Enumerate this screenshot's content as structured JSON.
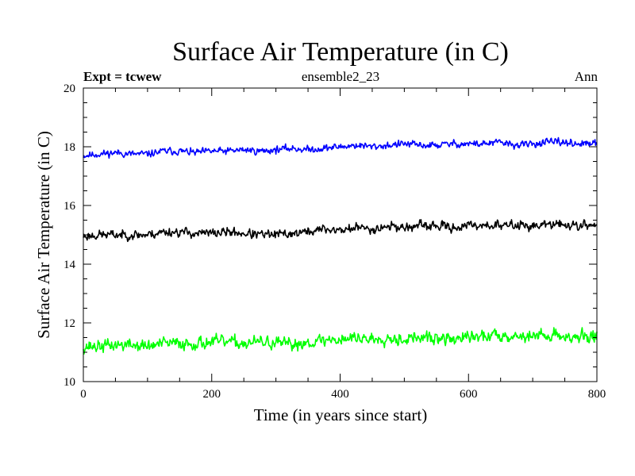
{
  "chart_data": {
    "type": "line",
    "title": "Surface Air Temperature (in C)",
    "subtitle_left": "Expt = tcwew",
    "subtitle_center": "ensemble2_23",
    "subtitle_right": "Ann",
    "xlabel": "Time (in years since start)",
    "ylabel": "Surface Air Temperature (in C)",
    "xlim": [
      0,
      800
    ],
    "ylim": [
      10,
      20
    ],
    "x_ticks": [
      0,
      200,
      400,
      600,
      800
    ],
    "y_ticks": [
      10,
      12,
      14,
      16,
      18,
      20
    ],
    "x_minor_step": 50,
    "y_minor_step": 0.5,
    "grid": false,
    "series": [
      {
        "name": "upper",
        "color": "#0000ff",
        "x_start": 0,
        "x_step": 25,
        "values": [
          17.7,
          17.75,
          17.8,
          17.75,
          17.75,
          17.85,
          17.85,
          17.8,
          17.85,
          17.85,
          17.9,
          17.85,
          17.9,
          17.95,
          17.9,
          17.95,
          18.0,
          18.05,
          18.0,
          18.05,
          18.1,
          18.05,
          18.05,
          18.1,
          18.1,
          18.1,
          18.15,
          18.05,
          18.1,
          18.15,
          18.15,
          18.1,
          18.1
        ],
        "noise": 0.17,
        "seed": 11
      },
      {
        "name": "middle",
        "color": "#000000",
        "x_start": 0,
        "x_step": 25,
        "values": [
          14.95,
          15.0,
          15.0,
          15.0,
          15.0,
          15.1,
          15.1,
          15.05,
          15.05,
          15.1,
          15.05,
          15.0,
          15.0,
          15.05,
          15.1,
          15.2,
          15.15,
          15.25,
          15.2,
          15.3,
          15.25,
          15.3,
          15.3,
          15.25,
          15.3,
          15.35,
          15.3,
          15.35,
          15.3,
          15.35,
          15.35,
          15.3,
          15.35
        ],
        "noise": 0.22,
        "seed": 23
      },
      {
        "name": "lower",
        "color": "#00ff00",
        "x_start": 0,
        "x_step": 25,
        "values": [
          11.2,
          11.2,
          11.25,
          11.25,
          11.2,
          11.3,
          11.3,
          11.3,
          11.35,
          11.35,
          11.3,
          11.35,
          11.3,
          11.25,
          11.35,
          11.4,
          11.45,
          11.5,
          11.45,
          11.5,
          11.45,
          11.5,
          11.45,
          11.45,
          11.5,
          11.55,
          11.6,
          11.55,
          11.55,
          11.6,
          11.55,
          11.5,
          11.55
        ],
        "noise": 0.3,
        "seed": 37
      }
    ]
  }
}
